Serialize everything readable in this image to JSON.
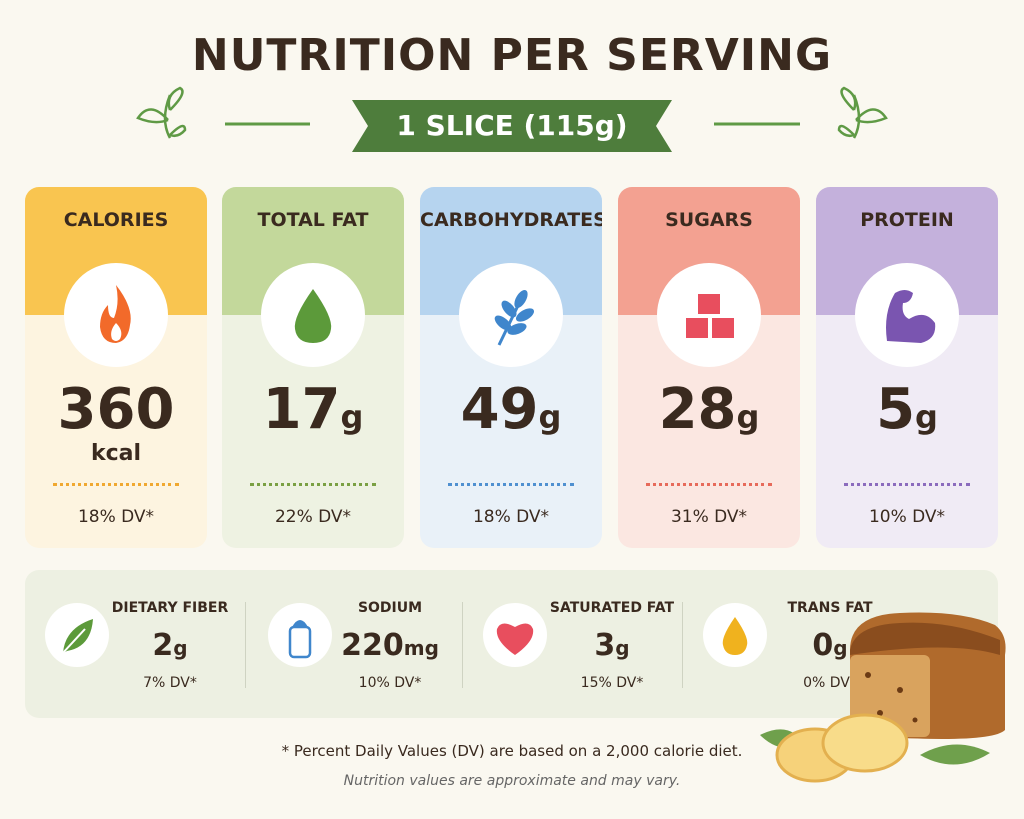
{
  "header": {
    "title": "NUTRITION PER SERVING",
    "serving": "1 SLICE (115g)"
  },
  "cards": [
    {
      "label": "CALORIES",
      "value": "360",
      "unit": "kcal",
      "dv": "18% DV*"
    },
    {
      "label": "TOTAL FAT",
      "value": "17",
      "unit": "g",
      "dv": "22% DV*"
    },
    {
      "label": "CARBOHYDRATES",
      "value": "49",
      "unit": "g",
      "dv": "18% DV*"
    },
    {
      "label": "SUGARS",
      "value": "28",
      "unit": "g",
      "dv": "31% DV*"
    },
    {
      "label": "PROTEIN",
      "value": "5",
      "unit": "g",
      "dv": "10% DV*"
    }
  ],
  "secondary": [
    {
      "label": "DIETARY FIBER",
      "value": "2",
      "unit": "g",
      "dv": "7% DV*"
    },
    {
      "label": "SODIUM",
      "value": "220",
      "unit": "mg",
      "dv": "10% DV*"
    },
    {
      "label": "SATURATED FAT",
      "value": "3",
      "unit": "g",
      "dv": "15% DV*"
    },
    {
      "label": "TRANS FAT",
      "value": "0",
      "unit": "g",
      "dv": "0% DV*"
    }
  ],
  "footer": {
    "footnote": "* Percent Daily Values (DV) are based on a 2,000 calorie diet.",
    "note": "Nutrition values are approximate and may vary."
  }
}
